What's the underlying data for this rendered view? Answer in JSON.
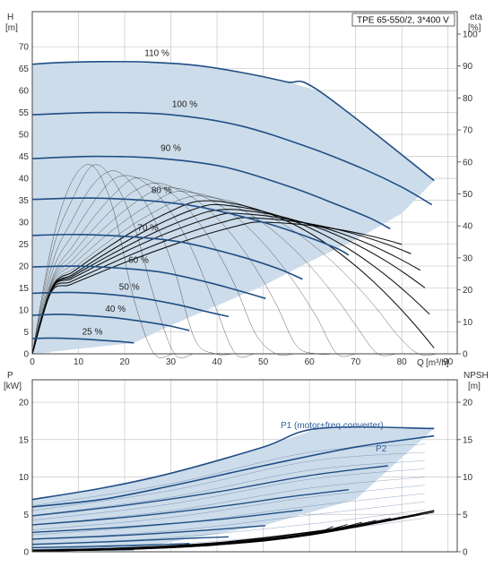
{
  "colors": {
    "envelope_fill": "#cddcea",
    "envelope_light": "#e4eef8",
    "curve": "#1f4e85",
    "label_blue": "#2f5f9a",
    "grid": "#c8c8c8",
    "eff_curve": "#000000"
  },
  "chart_data": [
    {
      "type": "line",
      "title": "TPE 65-550/2, 3*400 V",
      "ylabel": "H",
      "yunit": "[m]",
      "y2label": "eta",
      "y2unit": "[%]",
      "xlabel": "Q",
      "xunit": "[m³/h]",
      "xlim": [
        0,
        92
      ],
      "ylim": [
        0,
        78
      ],
      "y2lim": [
        0,
        107
      ],
      "xticks": [
        "0",
        "10",
        "20",
        "30",
        "40",
        "50",
        "60",
        "70",
        "80",
        "90"
      ],
      "yticks": [
        "0",
        "5",
        "10",
        "15",
        "20",
        "25",
        "30",
        "35",
        "40",
        "45",
        "50",
        "55",
        "60",
        "65",
        "70"
      ],
      "y2ticks": [
        "0",
        "10",
        "20",
        "30",
        "40",
        "50",
        "60",
        "70",
        "80",
        "90",
        "100"
      ],
      "grid": true,
      "speed_curves": [
        {
          "label": "110 %",
          "x": [
            0,
            6,
            15,
            25,
            35,
            45,
            55,
            62,
            87
          ],
          "y": [
            66,
            66.4,
            66.6,
            66.5,
            65.8,
            64.2,
            62,
            60,
            39.5
          ]
        },
        {
          "label": "100 %",
          "x": [
            0,
            15,
            30,
            45,
            60,
            72,
            80,
            86.5
          ],
          "y": [
            54.5,
            55,
            54.5,
            52,
            47,
            42,
            38,
            34
          ]
        },
        {
          "label": "90 %",
          "x": [
            0,
            14,
            28,
            42,
            56,
            66,
            73,
            77.5
          ],
          "y": [
            44.5,
            45,
            44.5,
            42.5,
            38,
            34,
            31,
            28.5
          ]
        },
        {
          "label": "80 %",
          "x": [
            0,
            12,
            24,
            36,
            50,
            60,
            66,
            68.5
          ],
          "y": [
            35.2,
            35.5,
            35,
            33.5,
            30,
            26.5,
            24,
            22.5
          ]
        },
        {
          "label": "70 %",
          "x": [
            0,
            10,
            21,
            32,
            44,
            53,
            58.5
          ],
          "y": [
            27,
            27.2,
            26.7,
            25.5,
            22.5,
            19.5,
            17
          ]
        },
        {
          "label": "60 %",
          "x": [
            0,
            9,
            18,
            28,
            38,
            46,
            50.5
          ],
          "y": [
            19.8,
            20,
            19.6,
            18.6,
            16.3,
            14,
            12.6
          ]
        },
        {
          "label": "50 %",
          "x": [
            0,
            7.5,
            15,
            23,
            31,
            37,
            42.5
          ],
          "y": [
            13.8,
            14,
            13.7,
            12.8,
            11.3,
            9.8,
            8.5
          ]
        },
        {
          "label": "40 %",
          "x": [
            0,
            6,
            12,
            18,
            25,
            30,
            34
          ],
          "y": [
            8.8,
            9,
            8.7,
            8.2,
            7.2,
            6.3,
            5.3
          ]
        },
        {
          "label": "25 %",
          "x": [
            0,
            4,
            8,
            12,
            16,
            19,
            22
          ],
          "y": [
            3.5,
            3.6,
            3.5,
            3.3,
            3,
            2.8,
            2.5
          ]
        }
      ],
      "envelope": {
        "x": [
          0,
          0,
          6,
          15,
          25,
          35,
          45,
          55,
          62,
          87,
          80,
          70,
          60,
          50,
          40,
          30,
          22,
          0
        ],
        "y": [
          0,
          66,
          66.4,
          66.6,
          66.5,
          65.8,
          64.2,
          62,
          60,
          39.5,
          32,
          26,
          21,
          15.5,
          11,
          6.5,
          2.5,
          0
        ]
      },
      "light_region": {
        "x": [
          0,
          0,
          6.5,
          4,
          0
        ],
        "y": [
          0,
          66,
          66.4,
          0,
          0
        ]
      }
    },
    {
      "type": "line",
      "ylabel": "P",
      "yunit": "[kW]",
      "y2label": "NPSH",
      "y2unit": "[m]",
      "ylim": [
        0,
        23
      ],
      "xlim": [
        0,
        92
      ],
      "yticks": [
        "0",
        "5",
        "10",
        "15",
        "20"
      ],
      "y2ticks": [
        "0",
        "5",
        "10",
        "15",
        "20"
      ],
      "grid": true,
      "series": [
        {
          "name": "P1 (motor+freq converter)",
          "x": [
            0,
            15,
            30,
            50,
            62,
            87
          ],
          "y": [
            7,
            8.5,
            10.5,
            14,
            16.5,
            16.5
          ]
        },
        {
          "name": "P2",
          "x": [
            0,
            15,
            30,
            50,
            70,
            87
          ],
          "y": [
            6,
            7,
            8.8,
            11.5,
            14,
            15.5
          ]
        }
      ],
      "speed_power_curves": [
        {
          "x": [
            0,
            20,
            40,
            60,
            77
          ],
          "y": [
            4.8,
            6.2,
            8,
            10.2,
            11.5
          ]
        },
        {
          "x": [
            0,
            20,
            40,
            55,
            68.5
          ],
          "y": [
            3.6,
            4.6,
            6,
            7.3,
            8.3
          ]
        },
        {
          "x": [
            0,
            20,
            40,
            58.5
          ],
          "y": [
            2.6,
            3.3,
            4.3,
            5.6
          ]
        },
        {
          "x": [
            0,
            20,
            38,
            50.5
          ],
          "y": [
            1.7,
            2.2,
            2.9,
            3.5
          ]
        },
        {
          "x": [
            0,
            15,
            30,
            42.5
          ],
          "y": [
            1,
            1.3,
            1.7,
            2
          ]
        },
        {
          "x": [
            0,
            12,
            24,
            34
          ],
          "y": [
            0.55,
            0.7,
            0.9,
            1.1
          ]
        },
        {
          "x": [
            0,
            10,
            22
          ],
          "y": [
            0.15,
            0.2,
            0.28
          ]
        }
      ],
      "npsh_curve": {
        "x": [
          0,
          20,
          40,
          60,
          75,
          87
        ],
        "y": [
          0.2,
          0.5,
          1.2,
          2.6,
          4,
          5.5
        ]
      },
      "envelope": {
        "x": [
          0,
          0,
          15,
          30,
          50,
          62,
          87,
          70,
          50,
          30,
          22,
          0
        ],
        "y": [
          0,
          7,
          8.5,
          10.5,
          14,
          16.5,
          16.5,
          7,
          3.5,
          1.3,
          0.35,
          0
        ]
      }
    }
  ]
}
